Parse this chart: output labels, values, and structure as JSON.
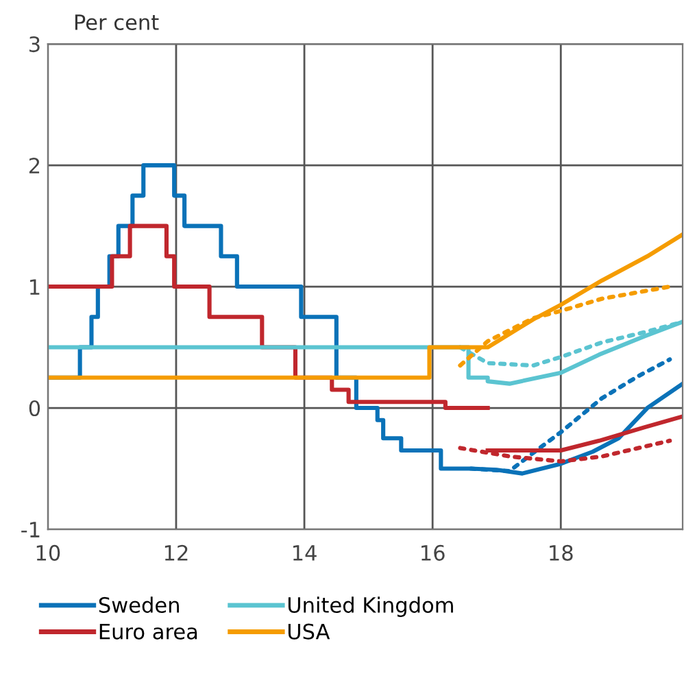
{
  "chart_data": {
    "type": "line",
    "ylabel": "Per cent",
    "xlim": [
      10,
      19.9
    ],
    "ylim": [
      -1,
      3
    ],
    "xticks": [
      10,
      12,
      14,
      16,
      18
    ],
    "yticks": [
      -1,
      0,
      1,
      2,
      3
    ],
    "grid": true,
    "legend": "bottom",
    "series": [
      {
        "name": "Sweden",
        "color": "#0a72b8",
        "line_style": "solid",
        "x": [
          10,
          10.5,
          10.5,
          10.68,
          10.68,
          10.78,
          10.78,
          10.96,
          10.96,
          11.1,
          11.1,
          11.32,
          11.32,
          11.49,
          11.49,
          11.97,
          11.97,
          12.13,
          12.13,
          12.7,
          12.7,
          12.95,
          12.95,
          13.95,
          13.95,
          14.5,
          14.5,
          14.81,
          14.81,
          15.14,
          15.14,
          15.23,
          15.23,
          15.51,
          15.51,
          16.13,
          16.13,
          16.6,
          17.0,
          17.4,
          18.0,
          18.5,
          18.9,
          19.35,
          19.9
        ],
        "values": [
          0.25,
          0.25,
          0.5,
          0.5,
          0.75,
          0.75,
          1.0,
          1.0,
          1.25,
          1.25,
          1.5,
          1.5,
          1.75,
          1.75,
          2.0,
          2.0,
          1.75,
          1.75,
          1.5,
          1.5,
          1.25,
          1.25,
          1.0,
          1.0,
          0.75,
          0.75,
          0.25,
          0.25,
          0,
          0,
          -0.1,
          -0.1,
          -0.25,
          -0.25,
          -0.35,
          -0.35,
          -0.5,
          -0.5,
          -0.51,
          -0.54,
          -0.46,
          -0.36,
          -0.25,
          0.0,
          0.2
        ]
      },
      {
        "color": "#0a72b8",
        "line_style": "dotted",
        "x": [
          16.6,
          17.2,
          17.57,
          18.0,
          18.64,
          19.2,
          19.7
        ],
        "values": [
          -0.5,
          -0.52,
          -0.37,
          -0.2,
          0.08,
          0.26,
          0.4
        ]
      },
      {
        "name": "Euro area",
        "color": "#c0272d",
        "line_style": "solid",
        "x": [
          10,
          11.0,
          11.0,
          11.28,
          11.28,
          11.85,
          11.85,
          11.97,
          11.97,
          12.52,
          12.52,
          13.34,
          13.34,
          13.86,
          13.86,
          14.43,
          14.43,
          14.69,
          14.69,
          16.2,
          16.2,
          16.86
        ],
        "values": [
          1.0,
          1.0,
          1.25,
          1.25,
          1.5,
          1.5,
          1.25,
          1.25,
          1.0,
          1.0,
          0.75,
          0.75,
          0.5,
          0.5,
          0.25,
          0.25,
          0.15,
          0.15,
          0.05,
          0.05,
          0.0,
          0.0
        ]
      },
      {
        "color": "#c0272d",
        "line_style": "solid",
        "x": [
          16.86,
          18.0,
          18.6,
          19.3,
          19.9
        ],
        "values": [
          -0.35,
          -0.35,
          -0.27,
          -0.16,
          -0.07
        ]
      },
      {
        "color": "#c0272d",
        "line_style": "dotted",
        "x": [
          16.43,
          17.21,
          18.0,
          18.64,
          19.7
        ],
        "values": [
          -0.33,
          -0.4,
          -0.44,
          -0.4,
          -0.27
        ]
      },
      {
        "name": "United Kingdom",
        "color": "#5bc4d1",
        "line_style": "solid",
        "x": [
          10,
          16.56,
          16.56,
          16.86,
          16.86,
          17.2,
          18.0,
          18.6,
          19.3,
          19.9
        ],
        "values": [
          0.5,
          0.5,
          0.25,
          0.25,
          0.22,
          0.2,
          0.29,
          0.44,
          0.59,
          0.71
        ]
      },
      {
        "color": "#5bc4d1",
        "line_style": "dotted",
        "x": [
          16.43,
          16.86,
          17.57,
          18.0,
          18.64,
          19.35,
          19.9
        ],
        "values": [
          0.5,
          0.37,
          0.35,
          0.42,
          0.54,
          0.63,
          0.71
        ]
      },
      {
        "name": "USA",
        "color": "#f59c00",
        "line_style": "solid",
        "x": [
          10,
          15.95,
          15.95,
          16.86,
          17.57,
          18.0,
          18.64,
          19.35,
          19.9
        ],
        "values": [
          0.25,
          0.25,
          0.5,
          0.5,
          0.73,
          0.85,
          1.05,
          1.25,
          1.43
        ]
      },
      {
        "color": "#f59c00",
        "line_style": "dotted",
        "x": [
          16.43,
          16.86,
          17.57,
          18.0,
          18.64,
          19.7
        ],
        "values": [
          0.35,
          0.55,
          0.74,
          0.8,
          0.9,
          1.0
        ]
      }
    ]
  }
}
